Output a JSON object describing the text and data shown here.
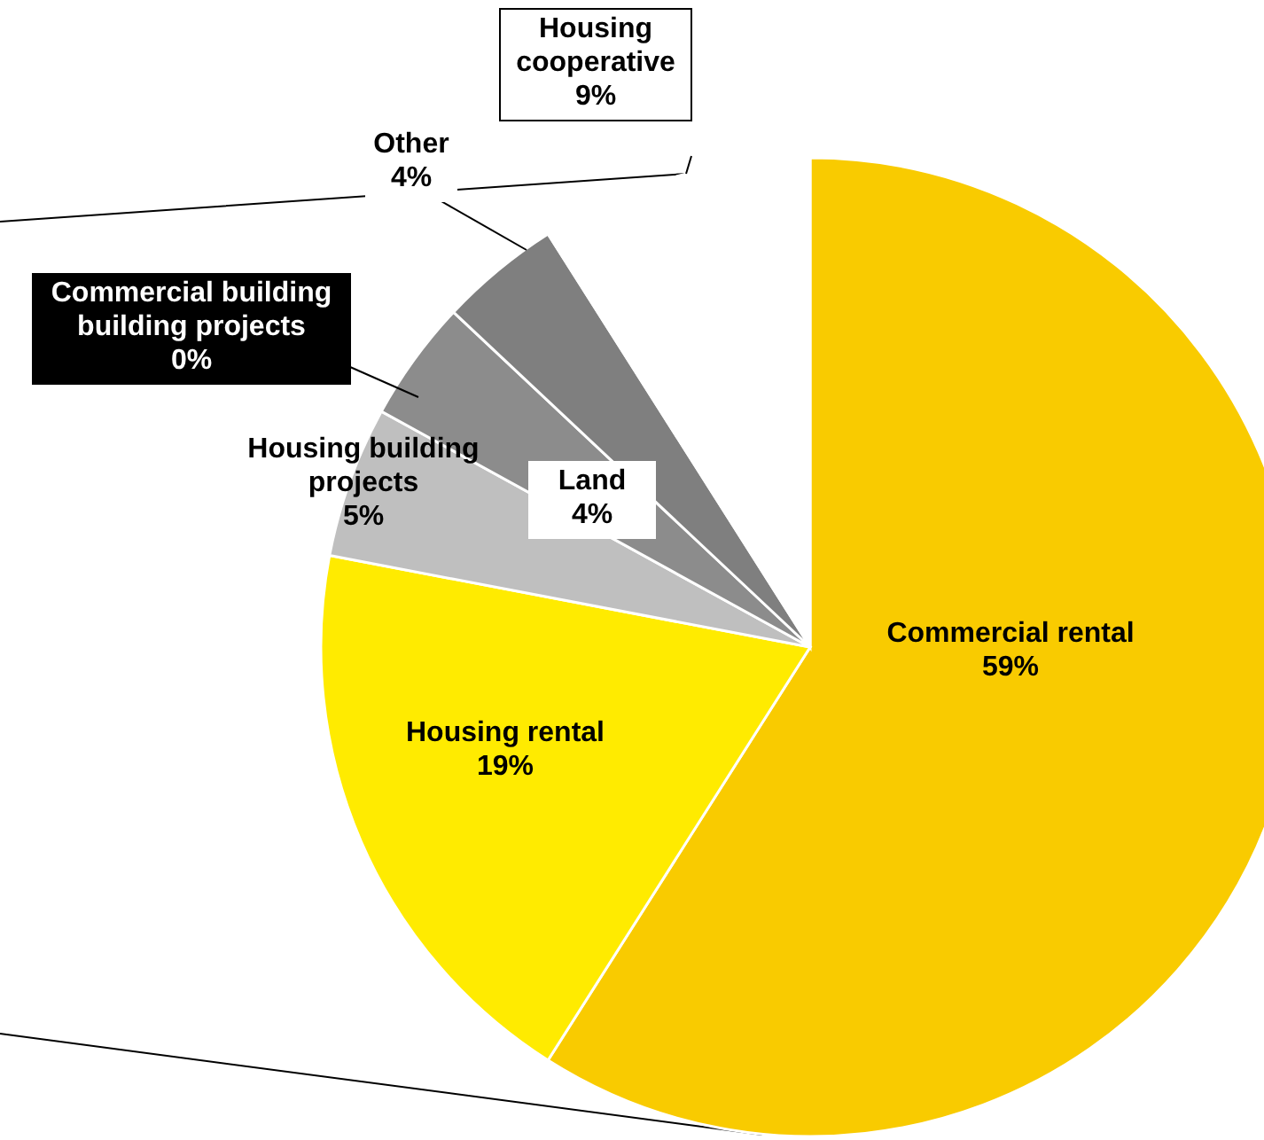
{
  "chart_data": {
    "type": "pie",
    "categories": [
      "Commercial rental",
      "Housing rental",
      "Housing building projects",
      "Commercial building building projects",
      "Land",
      "Other",
      "Housing cooperative"
    ],
    "values": [
      59,
      19,
      5,
      0,
      4,
      4,
      9
    ],
    "value_labels": [
      "59%",
      "19%",
      "5%",
      "0%",
      "4%",
      "4%",
      "9%"
    ],
    "colors": [
      "#f9cb00",
      "#ffeb00",
      "#bfbfbf",
      "#000000",
      "#8c8c8c",
      "#7f7f7f",
      "#ffffff"
    ],
    "legend": false
  }
}
